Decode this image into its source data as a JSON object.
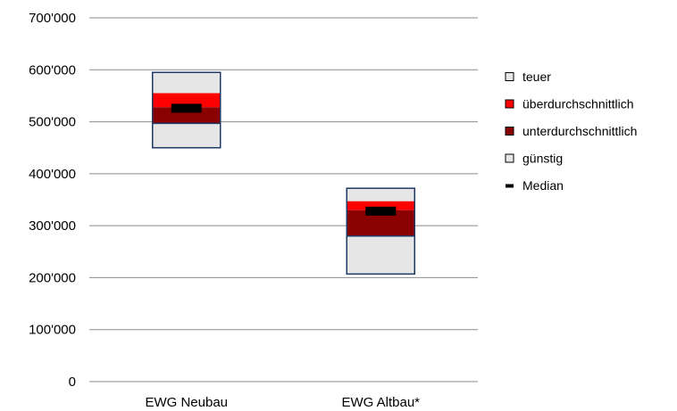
{
  "chart_data": {
    "type": "bar",
    "title": "",
    "xlabel": "",
    "ylabel": "",
    "ylim": [
      0,
      700000
    ],
    "y_ticks": [
      0,
      100000,
      200000,
      300000,
      400000,
      500000,
      600000,
      700000
    ],
    "y_tick_labels": [
      "0",
      "100'000",
      "200'000",
      "300'000",
      "400'000",
      "500'000",
      "600'000",
      "700'000"
    ],
    "grid": true,
    "legend_position": "right",
    "categories": [
      "EWG Neubau",
      "EWG Altbau*"
    ],
    "series": [
      {
        "name": "teuer",
        "color": "#e6e6e6",
        "ranges": [
          [
            555000,
            595000
          ],
          [
            347000,
            372000
          ]
        ]
      },
      {
        "name": "überdurchschnittlich",
        "color": "#ff0000",
        "ranges": [
          [
            528000,
            555000
          ],
          [
            330000,
            347000
          ]
        ]
      },
      {
        "name": "unterdurchschnittlich",
        "color": "#8b0000",
        "ranges": [
          [
            497000,
            528000
          ],
          [
            280000,
            330000
          ]
        ]
      },
      {
        "name": "günstig",
        "color": "#e6e6e6",
        "ranges": [
          [
            450000,
            497000
          ],
          [
            207000,
            280000
          ]
        ]
      },
      {
        "name": "Median",
        "color": "#000000",
        "values": [
          526000,
          328000
        ]
      }
    ]
  }
}
